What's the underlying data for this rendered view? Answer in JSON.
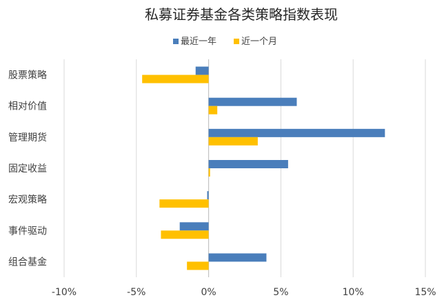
{
  "chart_data": {
    "type": "bar",
    "orientation": "horizontal",
    "title": "私募证券基金各类策略指数表现",
    "categories": [
      "股票策略",
      "相对价值",
      "管理期货",
      "固定收益",
      "宏观策略",
      "事件驱动",
      "组合基金"
    ],
    "series": [
      {
        "name": "最近一年",
        "values": [
          -0.9,
          6.1,
          12.2,
          5.5,
          -0.1,
          -2.0,
          4.0
        ]
      },
      {
        "name": "近一个月",
        "values": [
          -4.6,
          0.6,
          3.4,
          0.1,
          -3.4,
          -3.3,
          -1.5
        ]
      }
    ],
    "xlim": [
      -10,
      15
    ],
    "xticks": [
      "-10%",
      "-5%",
      "0%",
      "5%",
      "10%",
      "15%"
    ],
    "grid": true,
    "legend_position": "top",
    "colors": [
      "#4a7ebb",
      "#ffc000"
    ],
    "grid_color": "#d9d9d9",
    "text_color": "#404040"
  }
}
